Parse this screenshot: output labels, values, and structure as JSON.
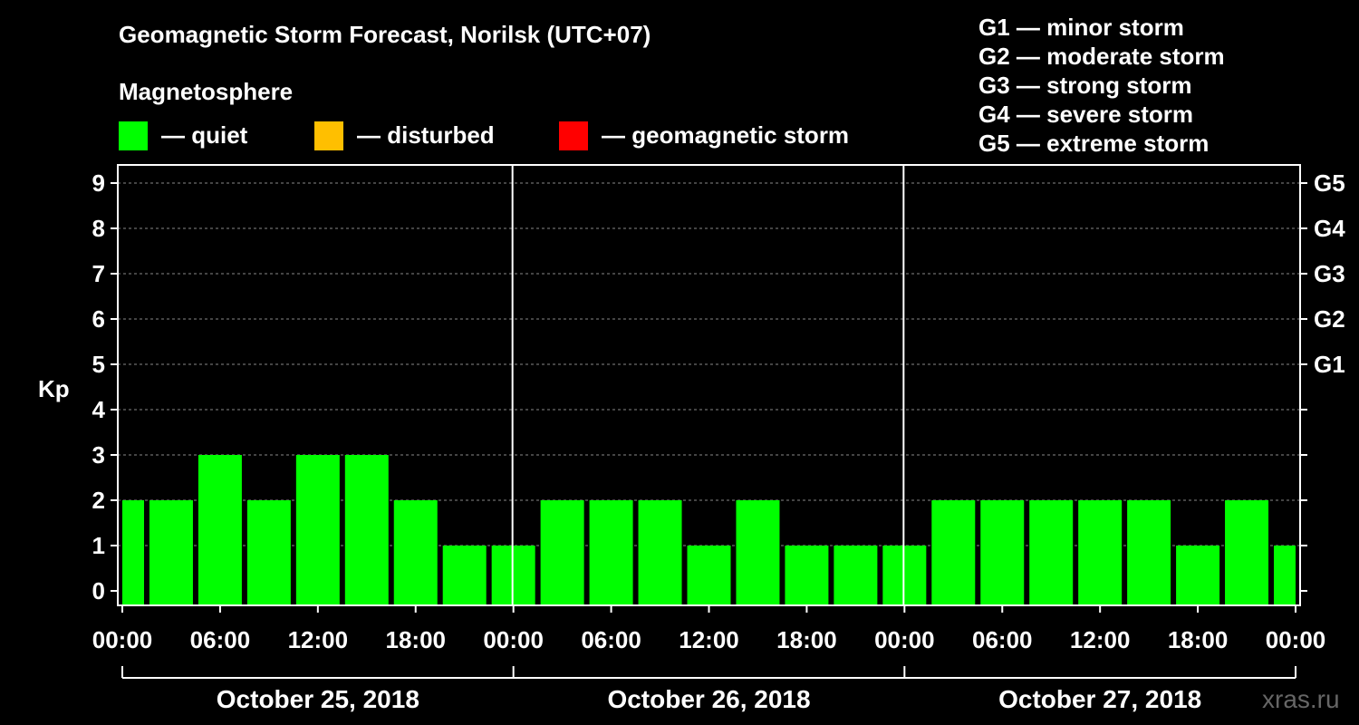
{
  "header": {
    "title": "Geomagnetic Storm Forecast, Norilsk (UTC+07)",
    "subtitle": "Magnetosphere"
  },
  "legend": {
    "items": [
      {
        "label": "— quiet",
        "color": "#00ff00"
      },
      {
        "label": "— disturbed",
        "color": "#ffbf00"
      },
      {
        "label": "— geomagnetic storm",
        "color": "#ff0000"
      }
    ]
  },
  "scale": {
    "items": [
      "G1 — minor storm",
      "G2 — moderate storm",
      "G3 — strong storm",
      "G4 — severe storm",
      "G5 — extreme storm"
    ]
  },
  "watermark": "xras.ru",
  "chart_data": {
    "type": "bar",
    "ylabel": "Kp",
    "ylim": [
      0,
      9
    ],
    "y_ticks": [
      "0",
      "1",
      "2",
      "3",
      "4",
      "5",
      "6",
      "7",
      "8",
      "9"
    ],
    "right_ticks": [
      "G1",
      "G2",
      "G3",
      "G4",
      "G5"
    ],
    "x_ticks": [
      "00:00",
      "06:00",
      "12:00",
      "18:00",
      "00:00",
      "06:00",
      "12:00",
      "18:00",
      "00:00",
      "06:00",
      "12:00",
      "18:00",
      "00:00"
    ],
    "days": [
      "October 25, 2018",
      "October 26, 2018",
      "October 27, 2018"
    ],
    "bar_color": "#00ff00",
    "grid": true,
    "x_hours": [
      0,
      3,
      6,
      9,
      12,
      15,
      18,
      21,
      24,
      27,
      30,
      33,
      36,
      39,
      42,
      45,
      48,
      51,
      54,
      57,
      60,
      63,
      66,
      69,
      72
    ],
    "values": [
      2,
      2,
      3,
      2,
      3,
      3,
      2,
      1,
      1,
      2,
      2,
      2,
      1,
      2,
      1,
      1,
      1,
      2,
      2,
      2,
      2,
      2,
      1,
      2,
      1
    ]
  }
}
